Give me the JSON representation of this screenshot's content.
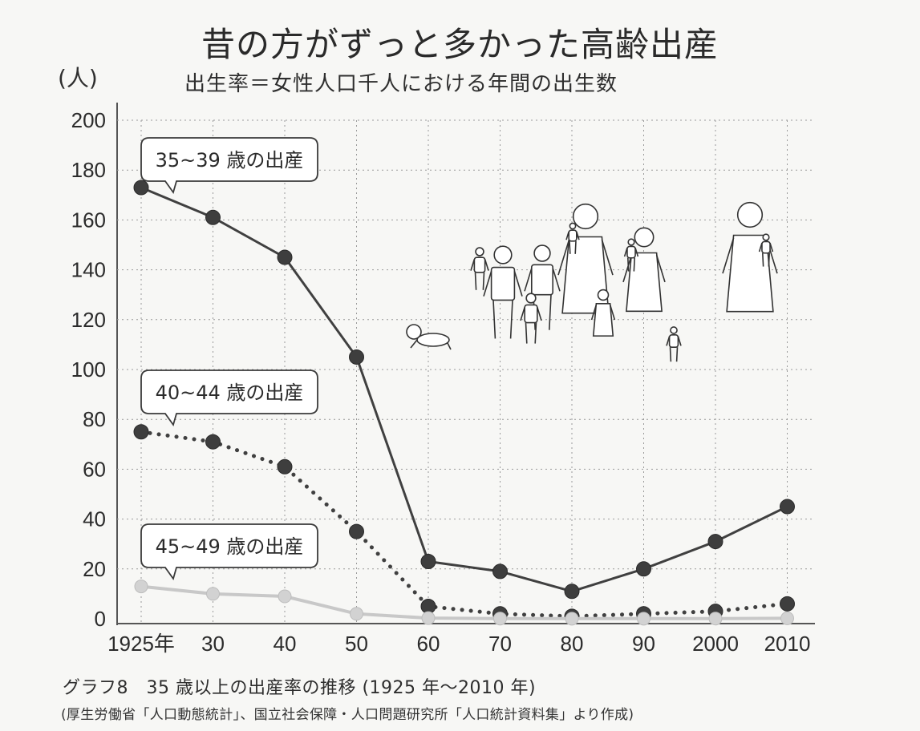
{
  "title": "昔の方がずっと多かった高齢出産",
  "subtitle": "出生率＝女性人口千人における年間の出生数",
  "caption": "グラフ8　35 歳以上の出産率の推移 (1925 年〜2010 年)",
  "source": "(厚生労働省「人口動態統計」、国立社会保障・人口問題研究所「人口統計資料集」より作成)",
  "illustration": "family-illustration",
  "chart_data": {
    "type": "line",
    "title": "昔の方がずっと多かった高齢出産",
    "subtitle": "出生率＝女性人口千人における年間の出生数",
    "ylabel": "(人)",
    "xlabel": "",
    "categories": [
      "1925年",
      "30",
      "40",
      "50",
      "60",
      "70",
      "80",
      "90",
      "2000",
      "2010"
    ],
    "ylim": [
      0,
      200
    ],
    "yticks": [
      0,
      20,
      40,
      60,
      80,
      100,
      120,
      140,
      160,
      180,
      200
    ],
    "grid": "dotted",
    "series": [
      {
        "name": "35~39 歳の出産",
        "values": [
          173,
          161,
          145,
          105,
          23,
          19,
          11,
          20,
          31,
          45
        ],
        "style": "solid",
        "color": "#404040"
      },
      {
        "name": "40~44 歳の出産",
        "values": [
          75,
          71,
          61,
          35,
          5,
          2,
          1,
          2,
          3,
          6
        ],
        "style": "dotted",
        "color": "#404040"
      },
      {
        "name": "45~49 歳の出産",
        "values": [
          13,
          10,
          9,
          2,
          0.3,
          0.1,
          0.05,
          0.05,
          0.1,
          0.2
        ],
        "style": "solid",
        "color": "#c8c8c8"
      }
    ]
  }
}
